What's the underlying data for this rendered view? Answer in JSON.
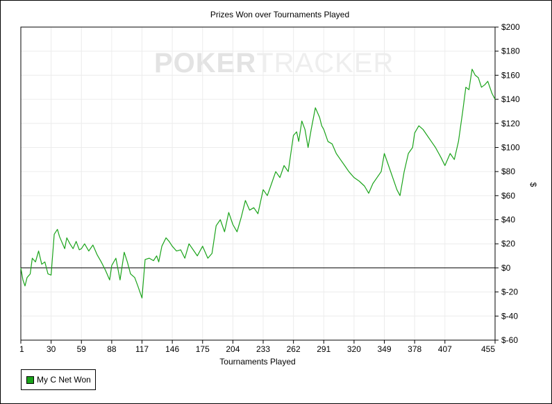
{
  "chart_data": {
    "type": "line",
    "title": "Prizes Won over Tournaments Played",
    "xlabel": "Tournaments Played",
    "ylabel": "$",
    "watermark": {
      "bold": "POKER",
      "light": "TRACKER"
    },
    "x_ticks": [
      1,
      30,
      59,
      88,
      117,
      146,
      175,
      204,
      233,
      262,
      291,
      320,
      349,
      378,
      407,
      455
    ],
    "xlim": [
      1,
      455
    ],
    "ylim": [
      -60,
      200
    ],
    "y_ticks": [
      200,
      180,
      160,
      140,
      120,
      100,
      80,
      60,
      40,
      20,
      0,
      -20,
      -40,
      -60
    ],
    "y_tick_labels": [
      "$200",
      "$180",
      "$160",
      "$140",
      "$120",
      "$100",
      "$80",
      "$60",
      "$40",
      "$20",
      "$0",
      "$-20",
      "$-40",
      "$-60"
    ],
    "y_axis_side": "right",
    "grid": true,
    "zero_line": true,
    "legend_position": "bottom-left",
    "series": [
      {
        "name": "My C Net Won",
        "color": "#1aa31a",
        "x": [
          1,
          3,
          5,
          7,
          10,
          12,
          15,
          18,
          21,
          24,
          27,
          30,
          33,
          36,
          38,
          40,
          43,
          45,
          48,
          51,
          54,
          57,
          59,
          62,
          66,
          70,
          74,
          78,
          82,
          86,
          88,
          92,
          96,
          100,
          103,
          106,
          110,
          113,
          117,
          120,
          124,
          128,
          131,
          133,
          136,
          140,
          143,
          146,
          150,
          154,
          158,
          162,
          166,
          170,
          175,
          180,
          184,
          188,
          192,
          196,
          200,
          204,
          208,
          212,
          216,
          220,
          224,
          228,
          233,
          237,
          241,
          245,
          249,
          253,
          257,
          262,
          265,
          267,
          270,
          273,
          276,
          279,
          283,
          287,
          289,
          291,
          295,
          299,
          303,
          307,
          311,
          315,
          320,
          325,
          330,
          334,
          338,
          342,
          346,
          349,
          353,
          357,
          361,
          364,
          368,
          372,
          376,
          378,
          382,
          386,
          390,
          394,
          398,
          403,
          407,
          412,
          416,
          420,
          424,
          427,
          430,
          433,
          436,
          439,
          442,
          445,
          448,
          452,
          455
        ],
        "y": [
          0,
          -10,
          -15,
          -8,
          -5,
          8,
          5,
          14,
          3,
          5,
          -5,
          -6,
          28,
          32,
          26,
          22,
          16,
          25,
          20,
          16,
          22,
          15,
          16,
          20,
          14,
          19,
          11,
          5,
          -2,
          -10,
          2,
          8,
          -10,
          13,
          5,
          -5,
          -8,
          -15,
          -25,
          7,
          8,
          6,
          10,
          5,
          18,
          25,
          22,
          18,
          14,
          15,
          8,
          20,
          15,
          10,
          18,
          8,
          12,
          35,
          40,
          30,
          46,
          36,
          30,
          42,
          56,
          48,
          50,
          45,
          65,
          60,
          70,
          80,
          75,
          85,
          80,
          110,
          113,
          105,
          122,
          115,
          100,
          115,
          133,
          125,
          118,
          115,
          105,
          103,
          95,
          90,
          85,
          80,
          75,
          72,
          68,
          62,
          70,
          75,
          80,
          95,
          85,
          75,
          65,
          60,
          80,
          95,
          100,
          112,
          118,
          115,
          110,
          105,
          100,
          92,
          85,
          95,
          90,
          105,
          130,
          150,
          148,
          165,
          160,
          158,
          150,
          152,
          155,
          145,
          140
        ]
      }
    ]
  }
}
